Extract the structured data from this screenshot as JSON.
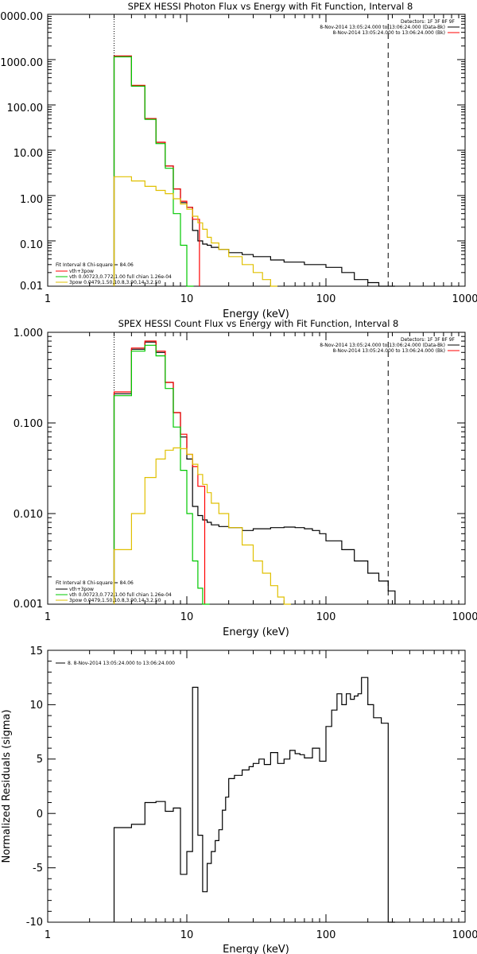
{
  "chart_data": [
    {
      "type": "line",
      "title": "SPEX HESSI Photon Flux vs Energy with Fit Function, Interval 8",
      "xlabel": "Energy (keV)",
      "ylabel": "",
      "xscale": "log",
      "yscale": "log",
      "xlim": [
        1,
        1000
      ],
      "ylim": [
        0.01,
        10000
      ],
      "xticks": [
        "1",
        "10",
        "100",
        "1000"
      ],
      "yticks": [
        "0.01",
        "0.10",
        "1.00",
        "10.00",
        "100.00",
        "1000.00",
        "0000.00"
      ],
      "legend_topright": {
        "detectors": "Detectors: 1F 3F 8F 9F",
        "entries": [
          {
            "text": "8-Nov-2014 13:05:24.000 to 13:06:24.000 (Data-Bk)",
            "color": "#000000"
          },
          {
            "text": "8-Nov-2014 13:05:24.000 to 13:06:24.000 (Bk)",
            "color": "#ff0000"
          }
        ]
      },
      "legend_bottomleft": {
        "header": "Fit Interval  8    Chi-square = 84.06",
        "entries": [
          {
            "text": "vth+3pow",
            "color": "#ff0000"
          },
          {
            "text": "vth 0.00723,0.772,1.00   full chian 1.26e-04",
            "color": "#00c800"
          },
          {
            "text": "3pow 0.0479,1.50,10.8,3.90,14.3,2.50",
            "color": "#e0c000"
          }
        ]
      },
      "vlines": [
        3,
        280
      ],
      "series": [
        {
          "name": "Data-Bk",
          "color": "#000000",
          "x": [
            3,
            4,
            5,
            6,
            7,
            8,
            9,
            10,
            11,
            12,
            13,
            14,
            15,
            17,
            20,
            25,
            30,
            40,
            50,
            70,
            100,
            130,
            160,
            200,
            240,
            280
          ],
          "y": [
            1200,
            260,
            50,
            15,
            4.5,
            1.4,
            0.7,
            0.55,
            0.17,
            0.1,
            0.085,
            0.08,
            0.072,
            0.065,
            0.055,
            0.05,
            0.045,
            0.038,
            0.034,
            0.03,
            0.026,
            0.02,
            0.014,
            0.012,
            0.01,
            0.009
          ]
        },
        {
          "name": "vth+3pow",
          "color": "#ff0000",
          "x": [
            3,
            4,
            5,
            6,
            7,
            8,
            9,
            10,
            11
          ],
          "y": [
            1200,
            270,
            50,
            15,
            4.5,
            1.4,
            0.75,
            0.55,
            0.3
          ]
        },
        {
          "name": "vth",
          "color": "#00c800",
          "x": [
            3,
            4,
            5,
            6,
            7,
            8,
            9,
            10
          ],
          "y": [
            1150,
            260,
            48,
            14,
            4,
            0.4,
            0.08,
            0.01
          ]
        },
        {
          "name": "3pow",
          "color": "#e0c000",
          "x": [
            3,
            4,
            5,
            6,
            7,
            8,
            9,
            10,
            11,
            12,
            13,
            14,
            15,
            17,
            20,
            25,
            30,
            35,
            40
          ],
          "y": [
            2.6,
            2.1,
            1.6,
            1.3,
            1.1,
            0.85,
            0.65,
            0.5,
            0.35,
            0.25,
            0.18,
            0.12,
            0.09,
            0.065,
            0.045,
            0.03,
            0.02,
            0.014,
            0.01
          ]
        }
      ]
    },
    {
      "type": "line",
      "title": "SPEX HESSI Count Flux vs Energy with Fit Function, Interval 8",
      "xlabel": "Energy (keV)",
      "ylabel": "",
      "xscale": "log",
      "yscale": "log",
      "xlim": [
        1,
        1000
      ],
      "ylim": [
        0.001,
        1
      ],
      "xticks": [
        "1",
        "10",
        "100",
        "1000"
      ],
      "yticks": [
        "0.001",
        "0.010",
        "0.100",
        "1.000"
      ],
      "legend_topright": {
        "detectors": "Detectors: 1F 3F 8F 9F",
        "entries": [
          {
            "text": "8-Nov-2014 13:05:24.000 to 13:06:24.000 (Data-Bk)",
            "color": "#000000"
          },
          {
            "text": "8-Nov-2014 13:05:24.000 to 13:06:24.000 (Bk)",
            "color": "#ff0000"
          }
        ]
      },
      "legend_bottomleft": {
        "header": "Fit Interval  8    Chi-square = 84.06",
        "entries": [
          {
            "text": "vth+3pow",
            "color": "#000000"
          },
          {
            "text": "vth 0.00723,0.772,1.00   full chian 1.26e-04",
            "color": "#00c800"
          },
          {
            "text": "3pow 0.0479,1.50,10.8,3.90,14.3,2.50",
            "color": "#e0c000"
          }
        ]
      },
      "vlines": [
        3,
        280
      ],
      "series": [
        {
          "name": "Data-Bk",
          "color": "#000000",
          "x": [
            3,
            4,
            5,
            6,
            7,
            8,
            9,
            10,
            11,
            12,
            13,
            14,
            15,
            17,
            20,
            25,
            30,
            40,
            50,
            60,
            70,
            80,
            90,
            100,
            130,
            160,
            200,
            240,
            280
          ],
          "y": [
            0.21,
            0.65,
            0.78,
            0.6,
            0.28,
            0.13,
            0.07,
            0.04,
            0.012,
            0.0095,
            0.0085,
            0.008,
            0.0075,
            0.0072,
            0.007,
            0.0065,
            0.0068,
            0.007,
            0.0071,
            0.007,
            0.0068,
            0.0065,
            0.006,
            0.005,
            0.004,
            0.003,
            0.0022,
            0.0018,
            0.0014
          ]
        },
        {
          "name": "vth+3pow",
          "color": "#ff0000",
          "x": [
            3,
            4,
            5,
            6,
            7,
            8,
            9,
            10,
            11,
            12
          ],
          "y": [
            0.22,
            0.67,
            0.8,
            0.62,
            0.28,
            0.13,
            0.075,
            0.045,
            0.033,
            0.02
          ]
        },
        {
          "name": "vth",
          "color": "#00c800",
          "x": [
            3,
            4,
            5,
            6,
            7,
            8,
            9,
            10,
            11,
            12,
            13
          ],
          "y": [
            0.2,
            0.62,
            0.72,
            0.55,
            0.24,
            0.09,
            0.03,
            0.01,
            0.003,
            0.0015,
            0.001
          ]
        },
        {
          "name": "3pow",
          "color": "#e0c000",
          "x": [
            3,
            4,
            5,
            6,
            7,
            8,
            9,
            10,
            11,
            12,
            13,
            14,
            15,
            17,
            20,
            25,
            30,
            35,
            40,
            45,
            50
          ],
          "y": [
            0.004,
            0.01,
            0.025,
            0.04,
            0.05,
            0.053,
            0.052,
            0.045,
            0.035,
            0.027,
            0.021,
            0.017,
            0.013,
            0.01,
            0.007,
            0.0045,
            0.003,
            0.0022,
            0.0016,
            0.0012,
            0.001
          ]
        }
      ]
    },
    {
      "type": "line",
      "title": "",
      "xlabel": "Energy (keV)",
      "ylabel": "Normalized Residuals (sigma)",
      "xscale": "log",
      "yscale": "linear",
      "xlim": [
        1,
        1000
      ],
      "ylim": [
        -10,
        15
      ],
      "xticks": [
        "1",
        "10",
        "100",
        "1000"
      ],
      "yticks": [
        "-10",
        "-5",
        "0",
        "5",
        "10",
        "15"
      ],
      "legend": "8.  8-Nov-2014 13:05:24.000 to 13:06:24.000",
      "series": [
        {
          "name": "residuals",
          "color": "#000000",
          "x": [
            3,
            4,
            5,
            6,
            7,
            8,
            9,
            10,
            11,
            12,
            13,
            14,
            15,
            16,
            17,
            18,
            19,
            20,
            22,
            25,
            28,
            30,
            33,
            36,
            40,
            45,
            50,
            55,
            60,
            65,
            70,
            80,
            90,
            100,
            110,
            120,
            130,
            140,
            150,
            160,
            170,
            180,
            200,
            220,
            250,
            280
          ],
          "y": [
            -1.3,
            -1,
            1,
            1.1,
            0.2,
            0.5,
            -5.6,
            -3.5,
            11.6,
            -2,
            -7.2,
            -4.6,
            -3.5,
            -2.5,
            -1.5,
            0.3,
            1.5,
            3.2,
            3.5,
            4,
            4.3,
            4.6,
            5,
            4.5,
            5.6,
            4.6,
            5,
            5.8,
            5.5,
            5.4,
            5.1,
            6,
            4.8,
            8,
            9.5,
            11,
            10,
            11,
            10.5,
            10.8,
            11,
            12.5,
            10,
            8.8,
            8.3,
            -10
          ]
        }
      ]
    }
  ]
}
